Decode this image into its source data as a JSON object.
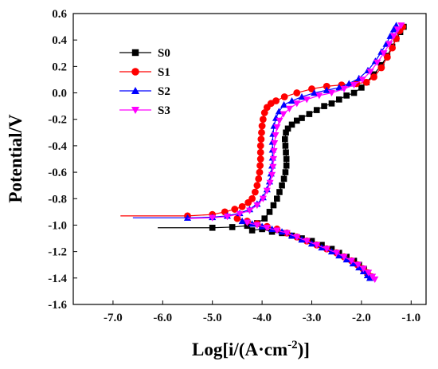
{
  "chart_data": {
    "type": "line",
    "title": "",
    "xlabel": "Log[i/(A·cm-2)]",
    "xlabel_parts": {
      "base": "Log[i/(A·cm",
      "sup": "-2",
      "tail": ")]"
    },
    "ylabel": "Potential/V",
    "xlim": [
      -7.8,
      -0.7
    ],
    "ylim": [
      -1.6,
      0.6
    ],
    "x_ticks": [
      -7.0,
      -6.0,
      -5.0,
      -4.0,
      -3.0,
      -2.0,
      -1.0
    ],
    "x_tick_labels": [
      "-7.0",
      "-6.0",
      "-5.0",
      "-4.0",
      "-3.0",
      "-2.0",
      "-1.0"
    ],
    "y_ticks": [
      -1.6,
      -1.4,
      -1.2,
      -1.0,
      -0.8,
      -0.6,
      -0.4,
      -0.2,
      0.0,
      0.2,
      0.4,
      0.6
    ],
    "y_tick_labels": [
      "-1.6",
      "-1.4",
      "-1.2",
      "-1.0",
      "-0.8",
      "-0.6",
      "-0.4",
      "-0.2",
      "0.0",
      "0.2",
      "0.4",
      "0.6"
    ],
    "grid": false,
    "legend_position": "top-left",
    "series": [
      {
        "name": "S0",
        "color": "#000000",
        "marker": "square",
        "anodic": [
          [
            -6.1,
            -1.02
          ],
          [
            -5.0,
            -1.02
          ],
          [
            -4.6,
            -1.015
          ],
          [
            -4.3,
            -1.005
          ],
          [
            -4.1,
            -0.985
          ],
          [
            -3.95,
            -0.95
          ],
          [
            -3.85,
            -0.9
          ],
          [
            -3.77,
            -0.85
          ],
          [
            -3.7,
            -0.8
          ],
          [
            -3.65,
            -0.75
          ],
          [
            -3.6,
            -0.7
          ],
          [
            -3.56,
            -0.65
          ],
          [
            -3.53,
            -0.6
          ],
          [
            -3.51,
            -0.55
          ],
          [
            -3.51,
            -0.5
          ],
          [
            -3.52,
            -0.45
          ],
          [
            -3.53,
            -0.4
          ],
          [
            -3.54,
            -0.35
          ],
          [
            -3.52,
            -0.3
          ],
          [
            -3.48,
            -0.27
          ],
          [
            -3.4,
            -0.24
          ],
          [
            -3.3,
            -0.21
          ],
          [
            -3.2,
            -0.19
          ],
          [
            -3.05,
            -0.16
          ],
          [
            -2.9,
            -0.13
          ],
          [
            -2.75,
            -0.1
          ],
          [
            -2.6,
            -0.08
          ],
          [
            -2.45,
            -0.05
          ],
          [
            -2.3,
            -0.02
          ],
          [
            -2.15,
            0.0
          ],
          [
            -2.0,
            0.04
          ],
          [
            -1.9,
            0.08
          ],
          [
            -1.75,
            0.14
          ],
          [
            -1.6,
            0.21
          ],
          [
            -1.48,
            0.28
          ],
          [
            -1.38,
            0.35
          ],
          [
            -1.3,
            0.41
          ],
          [
            -1.22,
            0.46
          ],
          [
            -1.15,
            0.5
          ]
        ],
        "cathodic": [
          [
            -4.2,
            -1.04
          ],
          [
            -4.0,
            -1.03
          ],
          [
            -3.8,
            -1.05
          ],
          [
            -3.6,
            -1.06
          ],
          [
            -3.4,
            -1.08
          ],
          [
            -3.2,
            -1.1
          ],
          [
            -3.0,
            -1.12
          ],
          [
            -2.8,
            -1.15
          ],
          [
            -2.6,
            -1.18
          ],
          [
            -2.45,
            -1.21
          ],
          [
            -2.3,
            -1.24
          ],
          [
            -2.15,
            -1.27
          ],
          [
            -2.05,
            -1.3
          ],
          [
            -1.95,
            -1.33
          ],
          [
            -1.88,
            -1.36
          ],
          [
            -1.82,
            -1.39
          ]
        ]
      },
      {
        "name": "S1",
        "color": "#ff0000",
        "marker": "circle",
        "anodic": [
          [
            -6.85,
            -0.93
          ],
          [
            -5.5,
            -0.93
          ],
          [
            -5.0,
            -0.92
          ],
          [
            -4.75,
            -0.9
          ],
          [
            -4.55,
            -0.88
          ],
          [
            -4.4,
            -0.86
          ],
          [
            -4.28,
            -0.83
          ],
          [
            -4.2,
            -0.8
          ],
          [
            -4.14,
            -0.75
          ],
          [
            -4.1,
            -0.7
          ],
          [
            -4.07,
            -0.65
          ],
          [
            -4.05,
            -0.6
          ],
          [
            -4.04,
            -0.55
          ],
          [
            -4.03,
            -0.5
          ],
          [
            -4.03,
            -0.45
          ],
          [
            -4.03,
            -0.4
          ],
          [
            -4.02,
            -0.35
          ],
          [
            -4.01,
            -0.3
          ],
          [
            -4.0,
            -0.25
          ],
          [
            -3.98,
            -0.2
          ],
          [
            -3.95,
            -0.15
          ],
          [
            -3.9,
            -0.11
          ],
          [
            -3.82,
            -0.08
          ],
          [
            -3.72,
            -0.06
          ],
          [
            -3.55,
            -0.03
          ],
          [
            -3.3,
            0.0
          ],
          [
            -3.0,
            0.03
          ],
          [
            -2.7,
            0.05
          ],
          [
            -2.4,
            0.06
          ],
          [
            -2.1,
            0.07
          ],
          [
            -1.9,
            0.08
          ],
          [
            -1.75,
            0.12
          ],
          [
            -1.6,
            0.19
          ],
          [
            -1.48,
            0.27
          ],
          [
            -1.38,
            0.34
          ],
          [
            -1.3,
            0.41
          ],
          [
            -1.23,
            0.47
          ],
          [
            -1.17,
            0.5
          ]
        ],
        "cathodic": [
          [
            -4.5,
            -0.95
          ],
          [
            -4.3,
            -0.97
          ],
          [
            -4.1,
            -0.99
          ],
          [
            -3.9,
            -1.01
          ],
          [
            -3.7,
            -1.03
          ],
          [
            -3.5,
            -1.06
          ],
          [
            -3.3,
            -1.09
          ],
          [
            -3.1,
            -1.12
          ],
          [
            -2.9,
            -1.15
          ],
          [
            -2.7,
            -1.18
          ],
          [
            -2.5,
            -1.21
          ],
          [
            -2.35,
            -1.24
          ],
          [
            -2.2,
            -1.27
          ],
          [
            -2.08,
            -1.3
          ],
          [
            -1.97,
            -1.33
          ],
          [
            -1.88,
            -1.36
          ],
          [
            -1.8,
            -1.39
          ]
        ]
      },
      {
        "name": "S2",
        "color": "#0000ff",
        "marker": "triangle-up",
        "anodic": [
          [
            -6.6,
            -0.945
          ],
          [
            -5.5,
            -0.945
          ],
          [
            -5.0,
            -0.94
          ],
          [
            -4.7,
            -0.93
          ],
          [
            -4.45,
            -0.91
          ],
          [
            -4.25,
            -0.88
          ],
          [
            -4.1,
            -0.84
          ],
          [
            -3.98,
            -0.79
          ],
          [
            -3.9,
            -0.73
          ],
          [
            -3.85,
            -0.67
          ],
          [
            -3.82,
            -0.61
          ],
          [
            -3.8,
            -0.55
          ],
          [
            -3.79,
            -0.49
          ],
          [
            -3.79,
            -0.43
          ],
          [
            -3.79,
            -0.37
          ],
          [
            -3.78,
            -0.31
          ],
          [
            -3.76,
            -0.25
          ],
          [
            -3.72,
            -0.19
          ],
          [
            -3.66,
            -0.14
          ],
          [
            -3.56,
            -0.09
          ],
          [
            -3.4,
            -0.06
          ],
          [
            -3.2,
            -0.03
          ],
          [
            -2.95,
            0.0
          ],
          [
            -2.7,
            0.02
          ],
          [
            -2.45,
            0.04
          ],
          [
            -2.25,
            0.07
          ],
          [
            -2.05,
            0.11
          ],
          [
            -1.87,
            0.17
          ],
          [
            -1.72,
            0.24
          ],
          [
            -1.6,
            0.31
          ],
          [
            -1.5,
            0.37
          ],
          [
            -1.42,
            0.43
          ],
          [
            -1.35,
            0.48
          ],
          [
            -1.3,
            0.51
          ]
        ],
        "cathodic": [
          [
            -4.4,
            -0.97
          ],
          [
            -4.2,
            -0.99
          ],
          [
            -4.0,
            -1.01
          ],
          [
            -3.8,
            -1.03
          ],
          [
            -3.6,
            -1.05
          ],
          [
            -3.4,
            -1.08
          ],
          [
            -3.2,
            -1.11
          ],
          [
            -3.0,
            -1.14
          ],
          [
            -2.8,
            -1.17
          ],
          [
            -2.6,
            -1.2
          ],
          [
            -2.45,
            -1.23
          ],
          [
            -2.3,
            -1.26
          ],
          [
            -2.17,
            -1.29
          ],
          [
            -2.05,
            -1.32
          ],
          [
            -1.96,
            -1.35
          ],
          [
            -1.88,
            -1.38
          ],
          [
            -1.83,
            -1.4
          ]
        ]
      },
      {
        "name": "S3",
        "color": "#ff00ff",
        "marker": "triangle-down",
        "anodic": [
          [
            -5.5,
            -0.95
          ],
          [
            -5.0,
            -0.945
          ],
          [
            -4.7,
            -0.935
          ],
          [
            -4.45,
            -0.915
          ],
          [
            -4.25,
            -0.89
          ],
          [
            -4.1,
            -0.85
          ],
          [
            -3.98,
            -0.8
          ],
          [
            -3.9,
            -0.74
          ],
          [
            -3.84,
            -0.68
          ],
          [
            -3.8,
            -0.62
          ],
          [
            -3.78,
            -0.56
          ],
          [
            -3.77,
            -0.5
          ],
          [
            -3.76,
            -0.44
          ],
          [
            -3.75,
            -0.38
          ],
          [
            -3.73,
            -0.32
          ],
          [
            -3.7,
            -0.26
          ],
          [
            -3.65,
            -0.21
          ],
          [
            -3.57,
            -0.16
          ],
          [
            -3.45,
            -0.12
          ],
          [
            -3.3,
            -0.08
          ],
          [
            -3.1,
            -0.05
          ],
          [
            -2.85,
            -0.02
          ],
          [
            -2.6,
            0.0
          ],
          [
            -2.35,
            0.03
          ],
          [
            -2.15,
            0.06
          ],
          [
            -1.98,
            0.1
          ],
          [
            -1.82,
            0.16
          ],
          [
            -1.68,
            0.23
          ],
          [
            -1.55,
            0.3
          ],
          [
            -1.44,
            0.37
          ],
          [
            -1.35,
            0.43
          ],
          [
            -1.27,
            0.48
          ],
          [
            -1.2,
            0.51
          ]
        ],
        "cathodic": [
          [
            -4.3,
            -0.98
          ],
          [
            -4.1,
            -1.0
          ],
          [
            -3.9,
            -1.02
          ],
          [
            -3.7,
            -1.04
          ],
          [
            -3.5,
            -1.06
          ],
          [
            -3.3,
            -1.09
          ],
          [
            -3.1,
            -1.12
          ],
          [
            -2.9,
            -1.15
          ],
          [
            -2.7,
            -1.18
          ],
          [
            -2.5,
            -1.21
          ],
          [
            -2.35,
            -1.24
          ],
          [
            -2.2,
            -1.27
          ],
          [
            -2.07,
            -1.3
          ],
          [
            -1.96,
            -1.33
          ],
          [
            -1.86,
            -1.36
          ],
          [
            -1.78,
            -1.39
          ],
          [
            -1.73,
            -1.41
          ]
        ]
      }
    ]
  }
}
